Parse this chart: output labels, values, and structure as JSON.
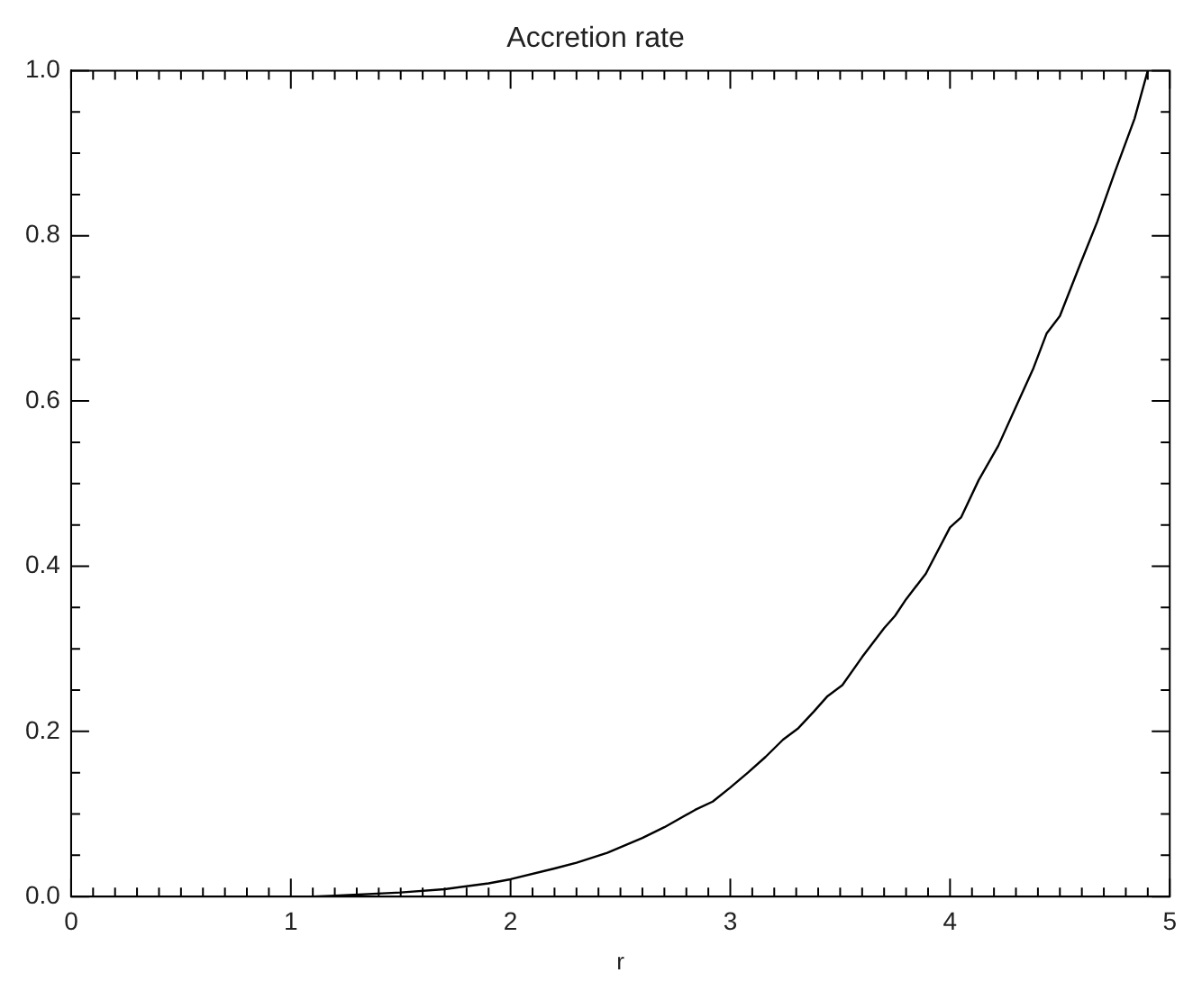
{
  "chart_data": {
    "type": "line",
    "title": "Accretion rate",
    "xlabel": "r",
    "x": [
      1.1,
      1.2,
      1.5,
      1.7,
      1.9,
      2.0,
      2.2,
      2.3,
      2.44,
      2.6,
      2.7,
      2.84,
      2.92,
      3.0,
      3.08,
      3.16,
      3.24,
      3.31,
      3.38,
      3.44,
      3.51,
      3.6,
      3.7,
      3.75,
      3.8,
      3.89,
      4.0,
      4.05,
      4.13,
      4.22,
      4.3,
      4.38,
      4.44,
      4.5,
      4.59,
      4.67,
      4.75,
      4.84,
      4.9
    ],
    "series": [
      {
        "color": "#000000",
        "values": [
          0.0,
          0.001,
          0.005,
          0.009,
          0.016,
          0.021,
          0.034,
          0.041,
          0.053,
          0.071,
          0.084,
          0.105,
          0.115,
          0.132,
          0.15,
          0.169,
          0.19,
          0.204,
          0.224,
          0.242,
          0.256,
          0.29,
          0.325,
          0.34,
          0.36,
          0.391,
          0.447,
          0.459,
          0.504,
          0.546,
          0.593,
          0.64,
          0.682,
          0.703,
          0.764,
          0.817,
          0.877,
          0.942,
          1.0
        ]
      }
    ],
    "xlim": [
      0,
      5
    ],
    "xticks": [
      0,
      {
        "value": 0.1,
        "label": null
      },
      {
        "value": 0.2,
        "label": null
      },
      {
        "value": 0.3,
        "label": null
      },
      {
        "value": 0.4,
        "label": null
      },
      {
        "value": 0.5,
        "label": null
      },
      {
        "value": 0.6,
        "label": null
      },
      {
        "value": 0.7,
        "label": null
      },
      {
        "value": 0.8,
        "label": null
      },
      {
        "value": 0.9,
        "label": null
      },
      1,
      {
        "value": 1.1,
        "label": null
      },
      {
        "value": 1.2,
        "label": null
      },
      {
        "value": 1.3,
        "label": null
      },
      {
        "value": 1.4,
        "label": null
      },
      {
        "value": 1.5,
        "label": null
      },
      {
        "value": 1.6,
        "label": null
      },
      {
        "value": 1.7,
        "label": null
      },
      {
        "value": 1.8,
        "label": null
      },
      {
        "value": 1.9,
        "label": null
      },
      2,
      {
        "value": 2.1,
        "label": null
      },
      {
        "value": 2.2,
        "label": null
      },
      {
        "value": 2.3,
        "label": null
      },
      {
        "value": 2.4,
        "label": null
      },
      {
        "value": 2.5,
        "label": null
      },
      {
        "value": 2.6,
        "label": null
      },
      {
        "value": 2.7,
        "label": null
      },
      {
        "value": 2.8,
        "label": null
      },
      {
        "value": 2.9,
        "label": null
      },
      3,
      {
        "value": 3.1,
        "label": null
      },
      {
        "value": 3.2,
        "label": null
      },
      {
        "value": 3.3,
        "label": null
      },
      {
        "value": 3.4,
        "label": null
      },
      {
        "value": 3.5,
        "label": null
      },
      {
        "value": 3.6,
        "label": null
      },
      {
        "value": 3.7,
        "label": null
      },
      {
        "value": 3.8,
        "label": null
      },
      {
        "value": 3.9,
        "label": null
      },
      4,
      {
        "value": 4.1,
        "label": null
      },
      {
        "value": 4.2,
        "label": null
      },
      {
        "value": 4.3,
        "label": null
      },
      {
        "value": 4.4,
        "label": null
      },
      {
        "value": 4.5,
        "label": null
      },
      {
        "value": 4.6,
        "label": null
      },
      {
        "value": 4.7,
        "label": null
      },
      {
        "value": 4.8,
        "label": null
      },
      {
        "value": 4.9,
        "label": null
      },
      5
    ],
    "ylim": [
      0,
      1
    ],
    "yticks": [
      {
        "value": 0,
        "label": "0.0"
      },
      {
        "value": 0.05,
        "label": null
      },
      {
        "value": 0.1,
        "label": null
      },
      {
        "value": 0.15,
        "label": null
      },
      {
        "value": 0.2,
        "label": "0.2"
      },
      {
        "value": 0.25,
        "label": null
      },
      {
        "value": 0.3,
        "label": null
      },
      {
        "value": 0.35,
        "label": null
      },
      {
        "value": 0.4,
        "label": "0.4"
      },
      {
        "value": 0.45,
        "label": null
      },
      {
        "value": 0.5,
        "label": null
      },
      {
        "value": 0.55,
        "label": null
      },
      {
        "value": 0.6,
        "label": "0.6"
      },
      {
        "value": 0.65,
        "label": null
      },
      {
        "value": 0.7,
        "label": null
      },
      {
        "value": 0.75,
        "label": null
      },
      {
        "value": 0.8,
        "label": "0.8"
      },
      {
        "value": 0.85,
        "label": null
      },
      {
        "value": 0.9,
        "label": null
      },
      {
        "value": 0.95,
        "label": null
      },
      {
        "value": 1,
        "label": "1.0"
      }
    ],
    "grid": false,
    "legend": false,
    "marker": "none",
    "line_style": "solid"
  }
}
